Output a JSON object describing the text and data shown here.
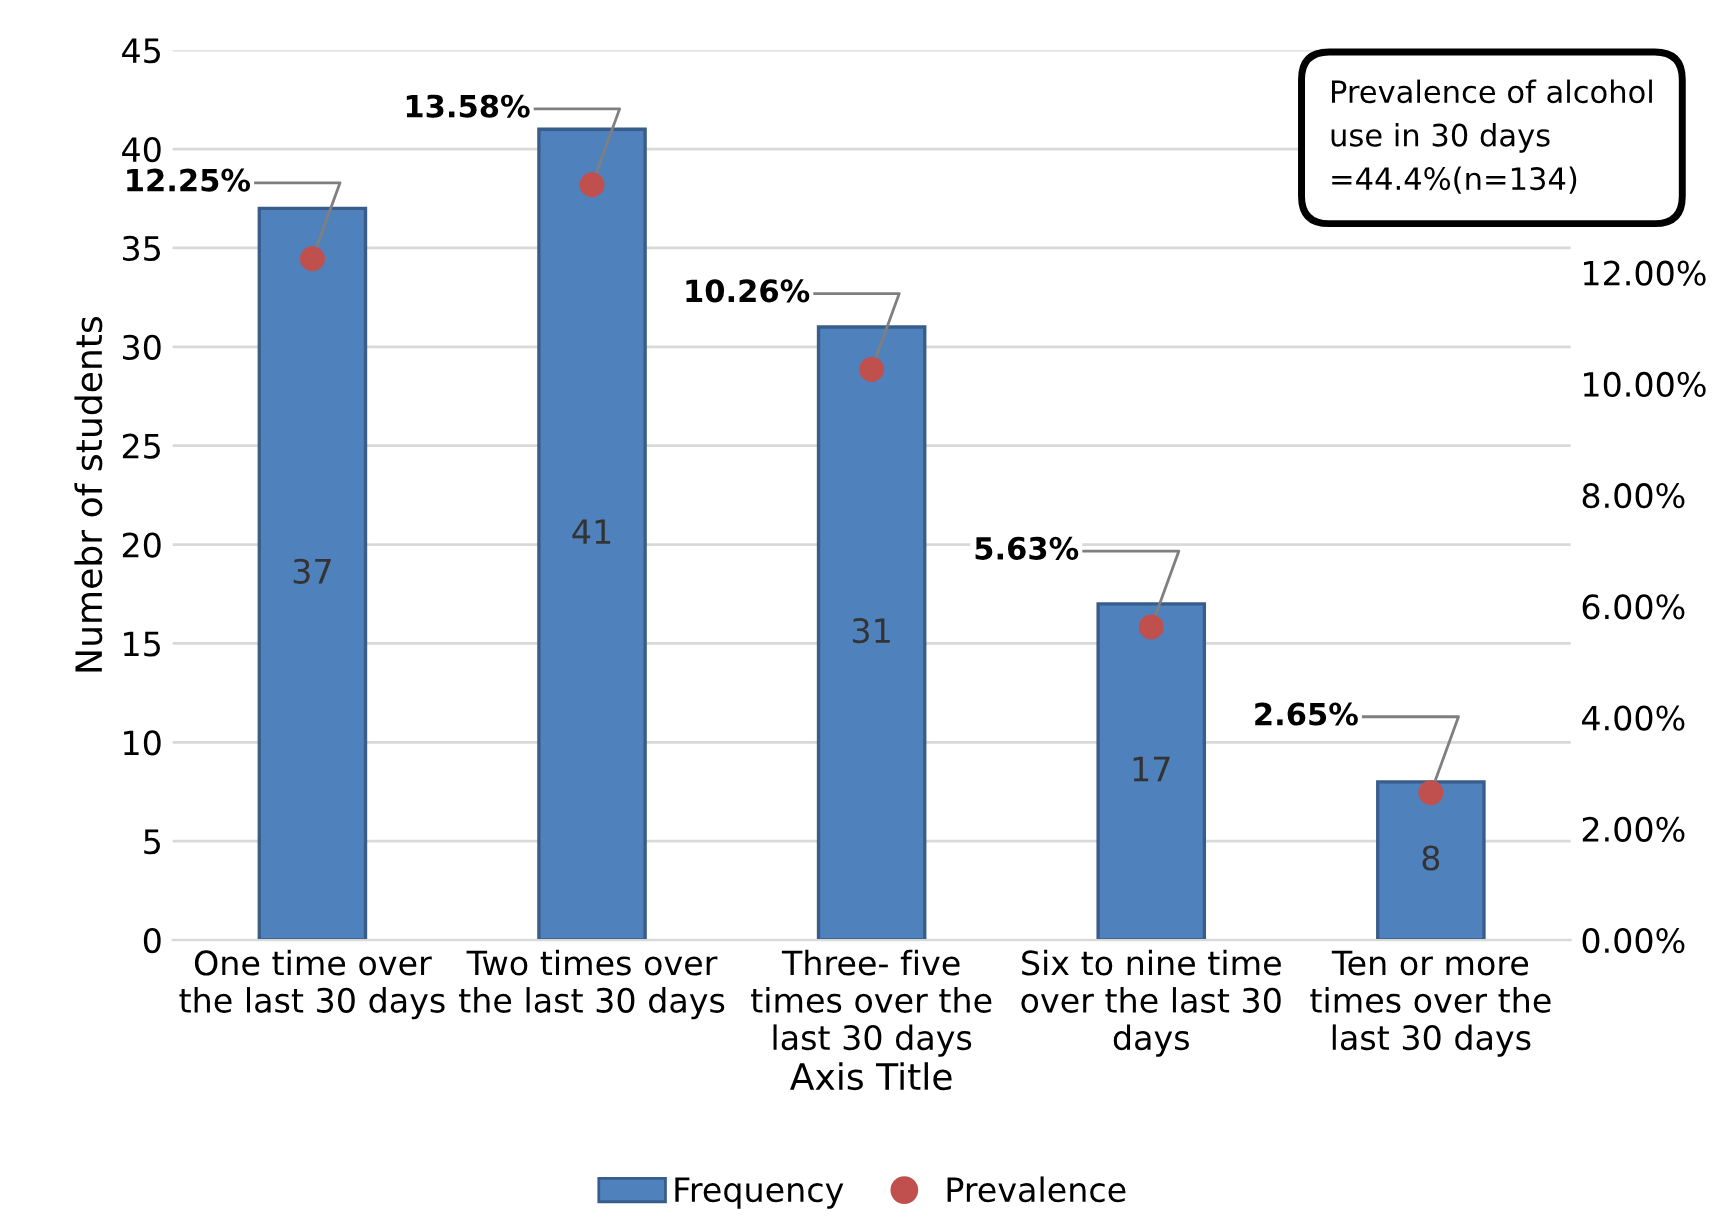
{
  "chart_data": {
    "type": "bar",
    "categories": [
      "One time over the last 30 days",
      "Two times over the last 30 days",
      "Three- five times over the last 30 days",
      "Six to nine time over the last 30 days",
      "Ten or more times over the last 30 days"
    ],
    "series": [
      {
        "name": "Frequency",
        "color": "#4f81bd",
        "values": [
          37,
          41,
          31,
          17,
          8
        ]
      },
      {
        "name": "Prevalence",
        "type": "scatter",
        "axis": "y2",
        "color": "#c0504d",
        "values": [
          12.25,
          13.58,
          10.26,
          5.63,
          2.65
        ],
        "value_labels": [
          "12.25%",
          "13.58%",
          "10.26%",
          "5.63%",
          "2.65%"
        ]
      }
    ],
    "data_labels": true,
    "xlabel": "Axis Title",
    "ylabel": "Numebr of students",
    "ylim": [
      0,
      45
    ],
    "yticks": [
      0,
      5,
      10,
      15,
      20,
      25,
      30,
      35,
      40,
      45
    ],
    "y2lim": [
      0,
      16
    ],
    "y2ticks": [
      {
        "value": 0,
        "label": "0.00%"
      },
      {
        "value": 2,
        "label": "2.00%"
      },
      {
        "value": 4,
        "label": "4.00%"
      },
      {
        "value": 6,
        "label": "6.00%"
      },
      {
        "value": 8,
        "label": "8.00%"
      },
      {
        "value": 10,
        "label": "10.00%"
      },
      {
        "value": 12,
        "label": "12.00%"
      }
    ],
    "annotations": [
      "Prevalence of alcohol use in 30 days =44.4%(n=134)"
    ],
    "grid": "y",
    "legend": "bottom",
    "marker": "circle"
  }
}
